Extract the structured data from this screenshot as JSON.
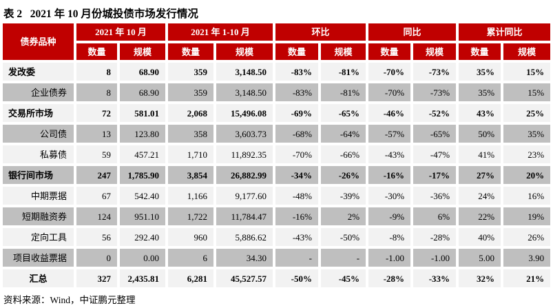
{
  "title": "表 2   2021 年 10 月份城投债市场发行情况",
  "source_note": "资料来源：Wind，中证鹏元整理",
  "colors": {
    "header_red": "#C00000",
    "row_light": "#F2F2F2",
    "row_dark": "#BFBFBF",
    "header_text": "#FFFFFF"
  },
  "table": {
    "corner_header": "债券品种",
    "group_headers": [
      "2021 年 10 月",
      "2021 年 1-10 月",
      "环比",
      "同比",
      "累计同比"
    ],
    "sub_headers": [
      "数量",
      "规模"
    ],
    "rows": [
      {
        "label": "发改委",
        "style": "section",
        "values": [
          "8",
          "68.90",
          "359",
          "3,148.50",
          "-83%",
          "-81%",
          "-70%",
          "-73%",
          "35%",
          "15%"
        ]
      },
      {
        "label": "企业债券",
        "style": "sub",
        "values": [
          "8",
          "68.90",
          "359",
          "3,148.50",
          "-83%",
          "-81%",
          "-70%",
          "-73%",
          "35%",
          "15%"
        ]
      },
      {
        "label": "交易所市场",
        "style": "section",
        "values": [
          "72",
          "581.01",
          "2,068",
          "15,496.08",
          "-69%",
          "-65%",
          "-46%",
          "-52%",
          "43%",
          "25%"
        ]
      },
      {
        "label": "公司债",
        "style": "sub",
        "values": [
          "13",
          "123.80",
          "358",
          "3,603.73",
          "-68%",
          "-64%",
          "-57%",
          "-65%",
          "50%",
          "35%"
        ]
      },
      {
        "label": "私募债",
        "style": "sub",
        "values": [
          "59",
          "457.21",
          "1,710",
          "11,892.35",
          "-70%",
          "-66%",
          "-43%",
          "-47%",
          "41%",
          "23%"
        ]
      },
      {
        "label": "银行间市场",
        "style": "section",
        "values": [
          "247",
          "1,785.90",
          "3,854",
          "26,882.99",
          "-34%",
          "-26%",
          "-16%",
          "-17%",
          "27%",
          "20%"
        ]
      },
      {
        "label": "中期票据",
        "style": "sub",
        "values": [
          "67",
          "542.40",
          "1,166",
          "9,177.60",
          "-48%",
          "-39%",
          "-30%",
          "-36%",
          "24%",
          "16%"
        ]
      },
      {
        "label": "短期融资券",
        "style": "sub",
        "values": [
          "124",
          "951.10",
          "1,722",
          "11,784.47",
          "-16%",
          "2%",
          "-9%",
          "6%",
          "22%",
          "19%"
        ]
      },
      {
        "label": "定向工具",
        "style": "sub",
        "values": [
          "56",
          "292.40",
          "960",
          "5,886.62",
          "-43%",
          "-50%",
          "-8%",
          "-28%",
          "40%",
          "26%"
        ]
      },
      {
        "label": "项目收益票据",
        "style": "sub",
        "values": [
          "0",
          "0.00",
          "6",
          "34.30",
          "-",
          "-",
          "-1.00",
          "-1.00",
          "5.00",
          "3.90"
        ]
      },
      {
        "label": "汇总",
        "style": "total",
        "values": [
          "327",
          "2,435.81",
          "6,281",
          "45,527.57",
          "-50%",
          "-45%",
          "-28%",
          "-33%",
          "32%",
          "21%"
        ]
      }
    ]
  }
}
